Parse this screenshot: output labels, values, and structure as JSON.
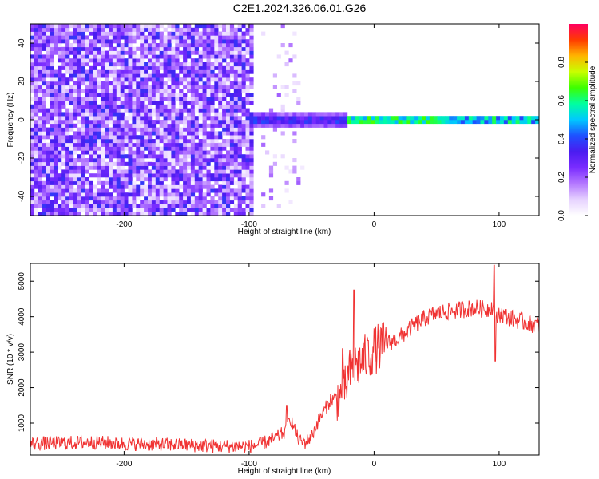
{
  "title": "C2E1.2024.326.06.01.G26",
  "colors": {
    "snr_line": "#f03232",
    "spectrogram_background": "#ffffff",
    "axis": "#000000"
  },
  "chart_data": [
    {
      "type": "heatmap",
      "xlabel": "Height of straight line (km)",
      "ylabel": "Frequency (Hz)",
      "xlim": [
        -275,
        132
      ],
      "ylim": [
        -50,
        50
      ],
      "xticks": [
        -200,
        -100,
        0,
        100
      ],
      "yticks": [
        -40,
        -20,
        0,
        20,
        40
      ],
      "grid": false,
      "colorbar": {
        "label": "Normalized spectral amplitude",
        "range": [
          0,
          1
        ],
        "ticks": [
          "0.0",
          "0.2",
          "0.4",
          "0.6",
          "0.8"
        ],
        "colormap": [
          "#ffffff",
          "#e6d2ff",
          "#b478ff",
          "#7a2cff",
          "#4a1cf0",
          "#1e50ff",
          "#00c8ff",
          "#00ffa0",
          "#3cff00",
          "#c8ff00",
          "#ffb400",
          "#ff3c00",
          "#ff0060"
        ]
      },
      "features": {
        "noise_region_x": [
          -275,
          -95
        ],
        "noise_secondary_x": [
          -90,
          -55
        ],
        "tone_start_x": -100,
        "tone_frequency_hz": 0,
        "tone_peak_x": [
          -20,
          100
        ]
      }
    },
    {
      "type": "line",
      "xlabel": "Height of straight line (km)",
      "ylabel": "SNR (10 * v/v)",
      "xlim": [
        -275,
        132
      ],
      "ylim": [
        100,
        5500
      ],
      "xticks": [
        -200,
        -100,
        0,
        100
      ],
      "yticks": [
        1000,
        2000,
        3000,
        4000,
        5000
      ],
      "grid": false,
      "series": [
        {
          "color": "#f03232",
          "x": [
            -275,
            -250,
            -225,
            -200,
            -175,
            -150,
            -125,
            -100,
            -90,
            -80,
            -70,
            -67,
            -64,
            -60,
            -55,
            -50,
            -45,
            -40,
            -35,
            -30,
            -25,
            -20,
            -15,
            -10,
            -5,
            0,
            10,
            20,
            30,
            40,
            50,
            60,
            70,
            80,
            90,
            95,
            97,
            100,
            110,
            120,
            132
          ],
          "y": [
            420,
            440,
            460,
            420,
            400,
            380,
            350,
            340,
            420,
            560,
            780,
            1150,
            850,
            500,
            450,
            620,
            1050,
            1350,
            1650,
            1750,
            1700,
            2400,
            2600,
            2750,
            2900,
            3050,
            3250,
            3400,
            3700,
            3950,
            4100,
            4150,
            4200,
            4250,
            4200,
            4300,
            3800,
            4100,
            3950,
            3850,
            3750
          ],
          "spikes": [
            {
              "x": -70,
              "y": 1500
            },
            {
              "x": -25,
              "y": 3100
            },
            {
              "x": -16,
              "y": 4750
            },
            {
              "x": 96,
              "y": 5450
            },
            {
              "x": 97,
              "y": 2750
            }
          ]
        }
      ]
    }
  ]
}
